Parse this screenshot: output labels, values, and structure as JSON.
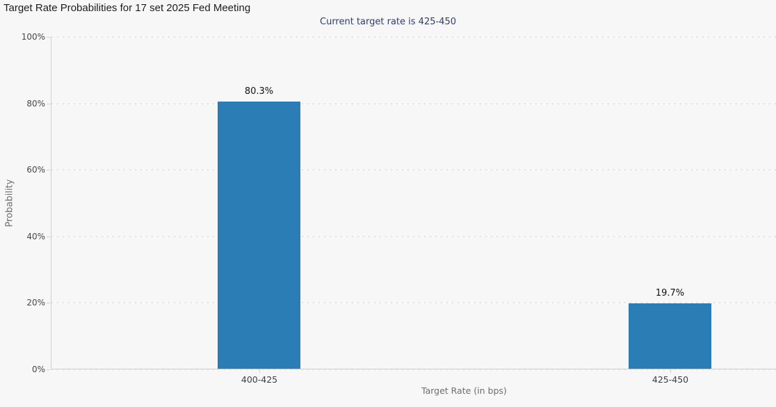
{
  "page": {
    "background_color": "#f7f7f7"
  },
  "chart_data": {
    "type": "bar",
    "title": "Target Rate Probabilities for 17 set 2025 Fed Meeting",
    "subtitle": "Current target rate is 425-450",
    "categories": [
      "400-425",
      "425-450"
    ],
    "values": [
      80.3,
      19.7
    ],
    "value_labels": [
      "80.3%",
      "19.7%"
    ],
    "xlabel": "Target Rate (in bps)",
    "ylabel": "Probability",
    "ylim": [
      0,
      100
    ],
    "ytick_interval": 20,
    "yticks": [
      "100%",
      "80%",
      "60%",
      "40%",
      "20%",
      "0%"
    ],
    "grid": "horizontal dotted gridlines on",
    "legend_position": "none",
    "bar_color": "#2b7db5",
    "subtitle_color": "#2b3f6d",
    "axis_color": "#cfcfcf"
  }
}
